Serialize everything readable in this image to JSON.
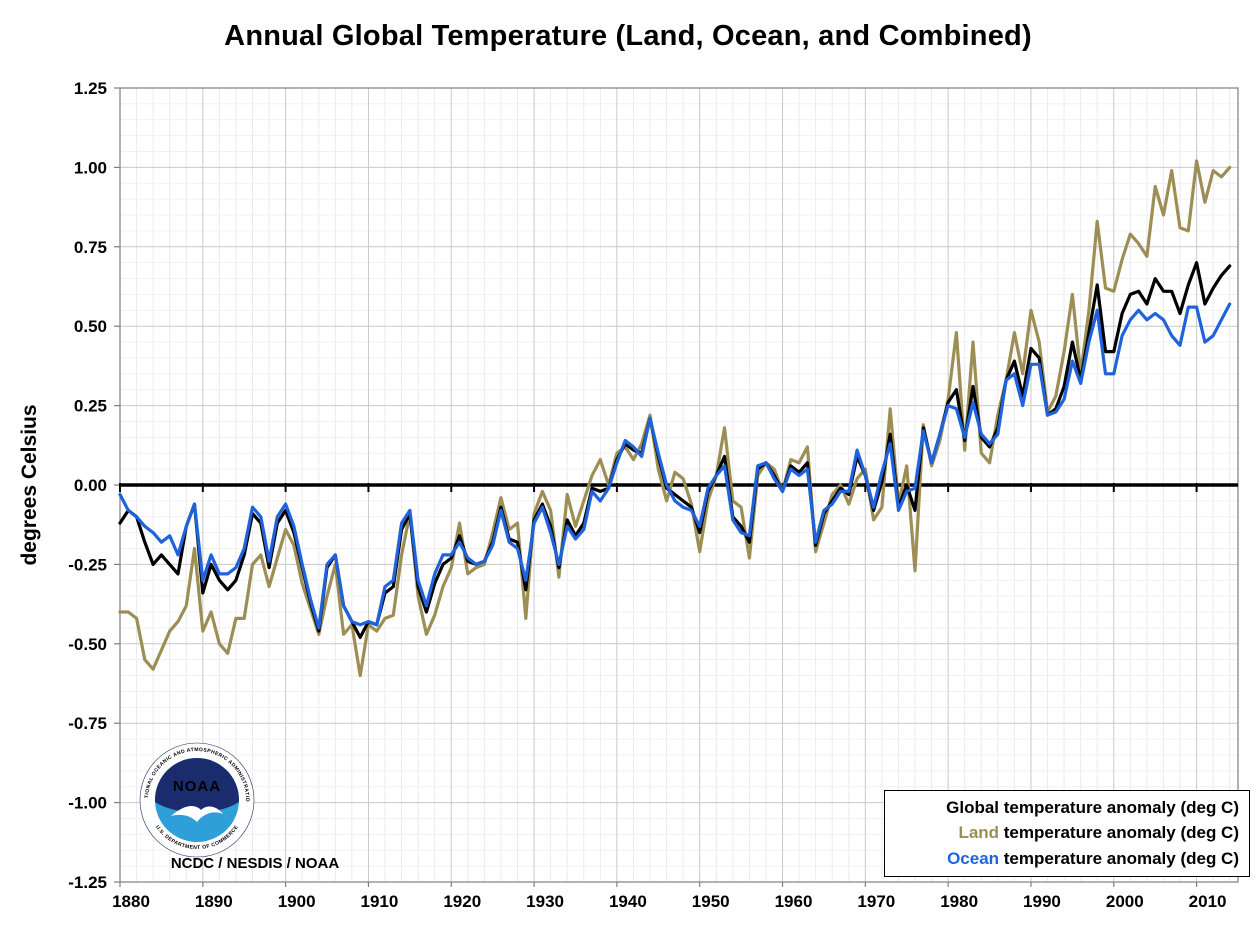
{
  "title": "Annual Global Temperature (Land, Ocean, and Combined)",
  "y_axis_label": "degrees Celsius",
  "source_label": "NCDC / NESDIS / NOAA",
  "noaa_logo": {
    "acronym": "NOAA",
    "ring_top_text": "NATIONAL OCEANIC AND ATMOSPHERIC ADMINISTRATION",
    "ring_bottom_text": "U.S. DEPARTMENT OF COMMERCE",
    "navy": "#1B2C6E",
    "light_blue": "#2E9FD8"
  },
  "legend": {
    "entries": [
      {
        "name": "Global",
        "rest": " temperature anomaly (deg C)",
        "color": "#000000"
      },
      {
        "name": "Land",
        "rest": " temperature anomaly (deg C)",
        "color": "#9C8E55"
      },
      {
        "name": "Ocean",
        "rest": " temperature anomaly (deg C)",
        "color": "#1F63DC"
      }
    ]
  },
  "chart_data": {
    "type": "line",
    "title": "Annual Global Temperature (Land, Ocean, and Combined)",
    "xlabel": "",
    "ylabel": "degrees Celsius",
    "xlim": [
      1880,
      2015
    ],
    "ylim": [
      -1.25,
      1.25
    ],
    "grid": true,
    "zero_line": true,
    "legend_position": "bottom-right",
    "x_ticks": [
      1880,
      1890,
      1900,
      1910,
      1920,
      1930,
      1940,
      1950,
      1960,
      1970,
      1980,
      1990,
      2000,
      2010
    ],
    "x_tick_labels": [
      "1880",
      "1890",
      "1900",
      "1910",
      "1920",
      "1930",
      "1940",
      "1950",
      "1960",
      "1970",
      "1980",
      "1990",
      "2000",
      "2010"
    ],
    "y_ticks": [
      1.25,
      1.0,
      0.75,
      0.5,
      0.25,
      0.0,
      -0.25,
      -0.5,
      -0.75,
      -1.0,
      -1.25
    ],
    "y_tick_labels": [
      "1.25",
      "1.00",
      "0.75",
      "0.50",
      "0.25",
      "0.00",
      "-0.25",
      "-0.50",
      "-0.75",
      "-1.00",
      "-1.25"
    ],
    "x": [
      1880,
      1881,
      1882,
      1883,
      1884,
      1885,
      1886,
      1887,
      1888,
      1889,
      1890,
      1891,
      1892,
      1893,
      1894,
      1895,
      1896,
      1897,
      1898,
      1899,
      1900,
      1901,
      1902,
      1903,
      1904,
      1905,
      1906,
      1907,
      1908,
      1909,
      1910,
      1911,
      1912,
      1913,
      1914,
      1915,
      1916,
      1917,
      1918,
      1919,
      1920,
      1921,
      1922,
      1923,
      1924,
      1925,
      1926,
      1927,
      1928,
      1929,
      1930,
      1931,
      1932,
      1933,
      1934,
      1935,
      1936,
      1937,
      1938,
      1939,
      1940,
      1941,
      1942,
      1943,
      1944,
      1945,
      1946,
      1947,
      1948,
      1949,
      1950,
      1951,
      1952,
      1953,
      1954,
      1955,
      1956,
      1957,
      1958,
      1959,
      1960,
      1961,
      1962,
      1963,
      1964,
      1965,
      1966,
      1967,
      1968,
      1969,
      1970,
      1971,
      1972,
      1973,
      1974,
      1975,
      1976,
      1977,
      1978,
      1979,
      1980,
      1981,
      1982,
      1983,
      1984,
      1985,
      1986,
      1987,
      1988,
      1989,
      1990,
      1991,
      1992,
      1993,
      1994,
      1995,
      1996,
      1997,
      1998,
      1999,
      2000,
      2001,
      2002,
      2003,
      2004,
      2005,
      2006,
      2007,
      2008,
      2009,
      2010,
      2011,
      2012,
      2013,
      2014
    ],
    "series": [
      {
        "name": "Global temperature anomaly (deg C)",
        "color": "#000000",
        "values": [
          -0.12,
          -0.08,
          -0.1,
          -0.18,
          -0.25,
          -0.22,
          -0.25,
          -0.28,
          -0.13,
          -0.06,
          -0.34,
          -0.25,
          -0.3,
          -0.33,
          -0.3,
          -0.22,
          -0.09,
          -0.12,
          -0.26,
          -0.12,
          -0.08,
          -0.15,
          -0.26,
          -0.37,
          -0.46,
          -0.26,
          -0.22,
          -0.38,
          -0.43,
          -0.48,
          -0.43,
          -0.44,
          -0.34,
          -0.32,
          -0.14,
          -0.09,
          -0.32,
          -0.4,
          -0.31,
          -0.25,
          -0.23,
          -0.16,
          -0.24,
          -0.25,
          -0.24,
          -0.18,
          -0.07,
          -0.17,
          -0.18,
          -0.33,
          -0.11,
          -0.06,
          -0.13,
          -0.26,
          -0.11,
          -0.16,
          -0.12,
          -0.01,
          -0.02,
          -0.01,
          0.08,
          0.13,
          0.11,
          0.1,
          0.21,
          0.09,
          -0.01,
          -0.03,
          -0.05,
          -0.07,
          -0.15,
          -0.02,
          0.03,
          0.09,
          -0.1,
          -0.13,
          -0.18,
          0.05,
          0.07,
          0.03,
          -0.02,
          0.06,
          0.04,
          0.07,
          -0.19,
          -0.09,
          -0.05,
          -0.01,
          -0.03,
          0.09,
          0.03,
          -0.08,
          0.01,
          0.16,
          -0.07,
          0.0,
          -0.08,
          0.18,
          0.07,
          0.16,
          0.26,
          0.3,
          0.14,
          0.31,
          0.15,
          0.12,
          0.18,
          0.33,
          0.39,
          0.28,
          0.43,
          0.4,
          0.22,
          0.24,
          0.31,
          0.45,
          0.33,
          0.48,
          0.63,
          0.42,
          0.42,
          0.54,
          0.6,
          0.61,
          0.57,
          0.65,
          0.61,
          0.61,
          0.54,
          0.63,
          0.7,
          0.57,
          0.62,
          0.66,
          0.69
        ]
      },
      {
        "name": "Land temperature anomaly (deg C)",
        "color": "#9C8E55",
        "values": [
          -0.4,
          -0.4,
          -0.42,
          -0.55,
          -0.58,
          -0.52,
          -0.46,
          -0.43,
          -0.38,
          -0.2,
          -0.46,
          -0.4,
          -0.5,
          -0.53,
          -0.42,
          -0.42,
          -0.25,
          -0.22,
          -0.32,
          -0.23,
          -0.14,
          -0.19,
          -0.31,
          -0.39,
          -0.47,
          -0.35,
          -0.25,
          -0.47,
          -0.44,
          -0.6,
          -0.44,
          -0.46,
          -0.42,
          -0.41,
          -0.22,
          -0.09,
          -0.35,
          -0.47,
          -0.41,
          -0.32,
          -0.26,
          -0.12,
          -0.28,
          -0.26,
          -0.25,
          -0.15,
          -0.04,
          -0.14,
          -0.12,
          -0.42,
          -0.09,
          -0.02,
          -0.08,
          -0.29,
          -0.03,
          -0.13,
          -0.05,
          0.03,
          0.08,
          0.0,
          0.1,
          0.12,
          0.08,
          0.13,
          0.22,
          0.05,
          -0.05,
          0.04,
          0.02,
          -0.06,
          -0.21,
          -0.05,
          0.03,
          0.18,
          -0.05,
          -0.07,
          -0.23,
          0.03,
          0.07,
          0.05,
          -0.02,
          0.08,
          0.07,
          0.12,
          -0.21,
          -0.12,
          -0.03,
          0.0,
          -0.06,
          0.02,
          0.05,
          -0.11,
          -0.07,
          0.24,
          -0.06,
          0.06,
          -0.27,
          0.19,
          0.06,
          0.14,
          0.27,
          0.48,
          0.11,
          0.45,
          0.1,
          0.07,
          0.22,
          0.33,
          0.48,
          0.35,
          0.55,
          0.45,
          0.23,
          0.28,
          0.42,
          0.6,
          0.35,
          0.55,
          0.83,
          0.62,
          0.61,
          0.71,
          0.79,
          0.76,
          0.72,
          0.94,
          0.85,
          0.99,
          0.81,
          0.8,
          1.02,
          0.89,
          0.99,
          0.97,
          1.0
        ]
      },
      {
        "name": "Ocean temperature anomaly (deg C)",
        "color": "#1F63DC",
        "values": [
          -0.03,
          -0.08,
          -0.1,
          -0.13,
          -0.15,
          -0.18,
          -0.16,
          -0.22,
          -0.13,
          -0.06,
          -0.3,
          -0.22,
          -0.28,
          -0.28,
          -0.26,
          -0.2,
          -0.07,
          -0.1,
          -0.24,
          -0.1,
          -0.06,
          -0.13,
          -0.25,
          -0.36,
          -0.45,
          -0.25,
          -0.22,
          -0.38,
          -0.43,
          -0.44,
          -0.43,
          -0.44,
          -0.32,
          -0.3,
          -0.12,
          -0.08,
          -0.3,
          -0.38,
          -0.28,
          -0.22,
          -0.22,
          -0.18,
          -0.23,
          -0.25,
          -0.24,
          -0.19,
          -0.08,
          -0.18,
          -0.2,
          -0.3,
          -0.12,
          -0.07,
          -0.15,
          -0.25,
          -0.13,
          -0.17,
          -0.14,
          -0.02,
          -0.05,
          -0.01,
          0.07,
          0.14,
          0.12,
          0.09,
          0.21,
          0.1,
          0.0,
          -0.05,
          -0.07,
          -0.08,
          -0.13,
          -0.01,
          0.03,
          0.06,
          -0.11,
          -0.15,
          -0.16,
          0.06,
          0.07,
          0.02,
          -0.02,
          0.05,
          0.03,
          0.05,
          -0.18,
          -0.08,
          -0.06,
          -0.02,
          -0.02,
          0.11,
          0.03,
          -0.07,
          0.04,
          0.13,
          -0.08,
          -0.02,
          -0.01,
          0.17,
          0.07,
          0.16,
          0.25,
          0.24,
          0.15,
          0.26,
          0.16,
          0.13,
          0.16,
          0.33,
          0.35,
          0.25,
          0.38,
          0.38,
          0.22,
          0.23,
          0.27,
          0.39,
          0.32,
          0.45,
          0.55,
          0.35,
          0.35,
          0.47,
          0.52,
          0.55,
          0.52,
          0.54,
          0.52,
          0.47,
          0.44,
          0.56,
          0.56,
          0.45,
          0.47,
          0.52,
          0.57
        ]
      }
    ]
  }
}
